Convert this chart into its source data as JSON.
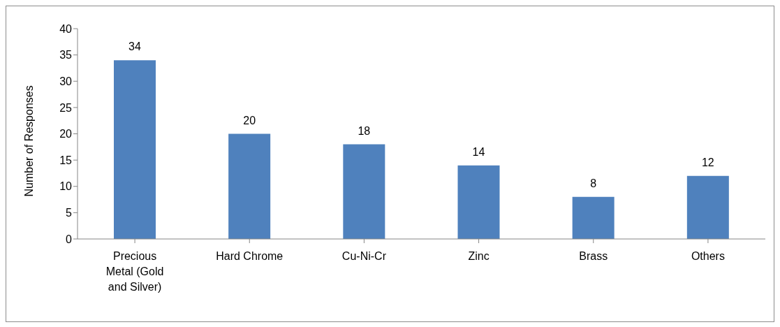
{
  "chart_data": {
    "type": "bar",
    "ylabel": "Number of Responses",
    "categories": [
      "Precious Metal (Gold and Silver)",
      "Hard Chrome",
      "Cu-Ni-Cr",
      "Zinc",
      "Brass",
      "Others"
    ],
    "values": [
      34,
      20,
      18,
      14,
      8,
      12
    ],
    "color": "#4f81bd",
    "ylim": [
      0,
      40
    ],
    "yticks": [
      0,
      5,
      10,
      15,
      20,
      25,
      30,
      35,
      40
    ],
    "grid": false,
    "data_labels": true
  }
}
